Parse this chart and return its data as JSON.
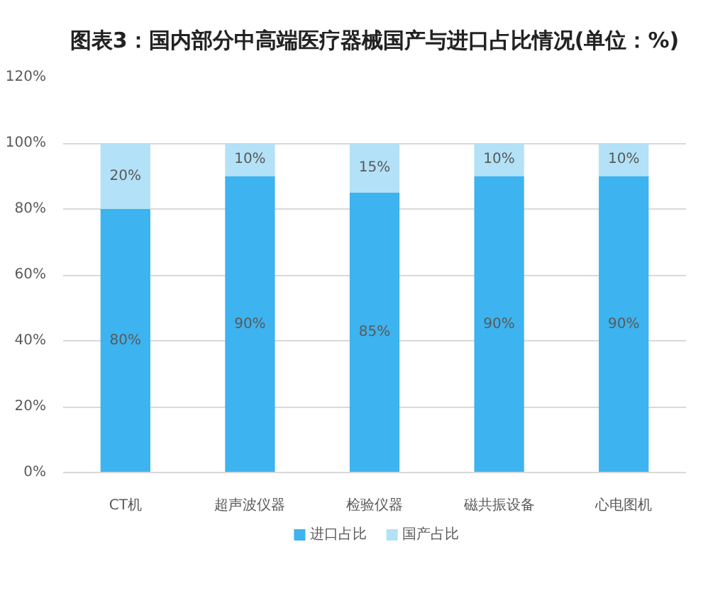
{
  "chart_data": {
    "type": "bar",
    "title": "图表3：国内部分中高端医疗器械国产与进口占比情况(单位：%)",
    "categories": [
      "CT机",
      "超声波仪器",
      "检验仪器",
      "磁共振设备",
      "心电图机"
    ],
    "series": [
      {
        "name": "进口占比",
        "color": "#3db3ef",
        "values": [
          80,
          90,
          85,
          90,
          90
        ],
        "value_labels": [
          "80%",
          "90%",
          "85%",
          "90%",
          "90%"
        ]
      },
      {
        "name": "国产占比",
        "color": "#b3e1f7",
        "values": [
          20,
          10,
          15,
          10,
          10
        ],
        "value_labels": [
          "20%",
          "10%",
          "15%",
          "10%",
          "10%"
        ]
      }
    ],
    "stacked": true,
    "ylim": [
      0,
      120
    ],
    "yticks": [
      {
        "value": 0,
        "label": "0%"
      },
      {
        "value": 20,
        "label": "20%"
      },
      {
        "value": 40,
        "label": "40%"
      },
      {
        "value": 60,
        "label": "60%"
      },
      {
        "value": 80,
        "label": "80%"
      },
      {
        "value": 100,
        "label": "100%"
      },
      {
        "value": 120,
        "label": "120%"
      }
    ],
    "grid": "y",
    "legend": "bottom"
  }
}
